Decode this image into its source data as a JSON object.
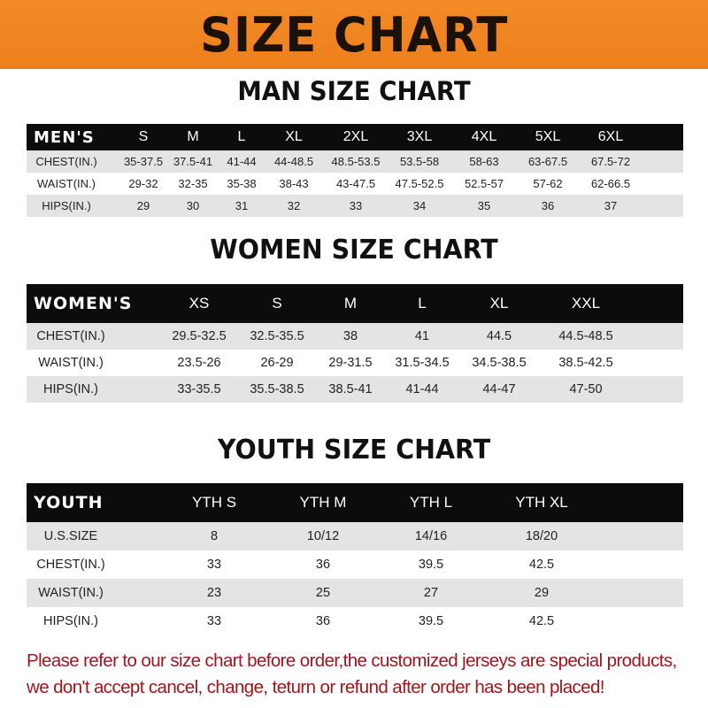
{
  "banner": {
    "title": "SIZE CHART",
    "color": "#f08a24"
  },
  "men": {
    "title": "MAN SIZE CHART",
    "header": [
      "MEN'S",
      "S",
      "M",
      "L",
      "XL",
      "2XL",
      "3XL",
      "4XL",
      "5XL",
      "6XL"
    ],
    "rows": [
      [
        "CHEST(IN.)",
        "35-37.5",
        "37.5-41",
        "41-44",
        "44-48.5",
        "48.5-53.5",
        "53.5-58",
        "58-63",
        "63-67.5",
        "67.5-72"
      ],
      [
        "WAIST(IN.)",
        "29-32",
        "32-35",
        "35-38",
        "38-43",
        "43-47.5",
        "47.5-52.5",
        "52.5-57",
        "57-62",
        "62-66.5"
      ],
      [
        "HIPS(IN.)",
        "29",
        "30",
        "31",
        "32",
        "33",
        "34",
        "35",
        "36",
        "37"
      ]
    ]
  },
  "women": {
    "title": "WOMEN SIZE CHART",
    "header": [
      "WOMEN'S",
      "XS",
      "S",
      "M",
      "L",
      "XL",
      "XXL"
    ],
    "rows": [
      [
        "CHEST(IN.)",
        "29.5-32.5",
        "32.5-35.5",
        "38",
        "41",
        "44.5",
        "44.5-48.5"
      ],
      [
        "WAIST(IN.)",
        "23.5-26",
        "26-29",
        "29-31.5",
        "31.5-34.5",
        "34.5-38.5",
        "38.5-42.5"
      ],
      [
        "HIPS(IN.)",
        "33-35.5",
        "35.5-38.5",
        "38.5-41",
        "41-44",
        "44-47",
        "47-50"
      ]
    ]
  },
  "youth": {
    "title": "YOUTH SIZE CHART",
    "header": [
      "YOUTH",
      "YTH S",
      "YTH M",
      "YTH L",
      "YTH XL"
    ],
    "rows": [
      [
        "U.S.SIZE",
        "8",
        "10/12",
        "14/16",
        "18/20"
      ],
      [
        "CHEST(IN.)",
        "33",
        "36",
        "39.5",
        "42.5"
      ],
      [
        "WAIST(IN.)",
        "23",
        "25",
        "27",
        "29"
      ],
      [
        "HIPS(IN.)",
        "33",
        "36",
        "39.5",
        "42.5"
      ]
    ]
  },
  "notice": {
    "line1": "Please refer to our size chart before order,the customized jerseys are special products,",
    "line2": "we don't accept cancel, change, teturn or refund after order has been placed!",
    "color": "#a3151b"
  }
}
